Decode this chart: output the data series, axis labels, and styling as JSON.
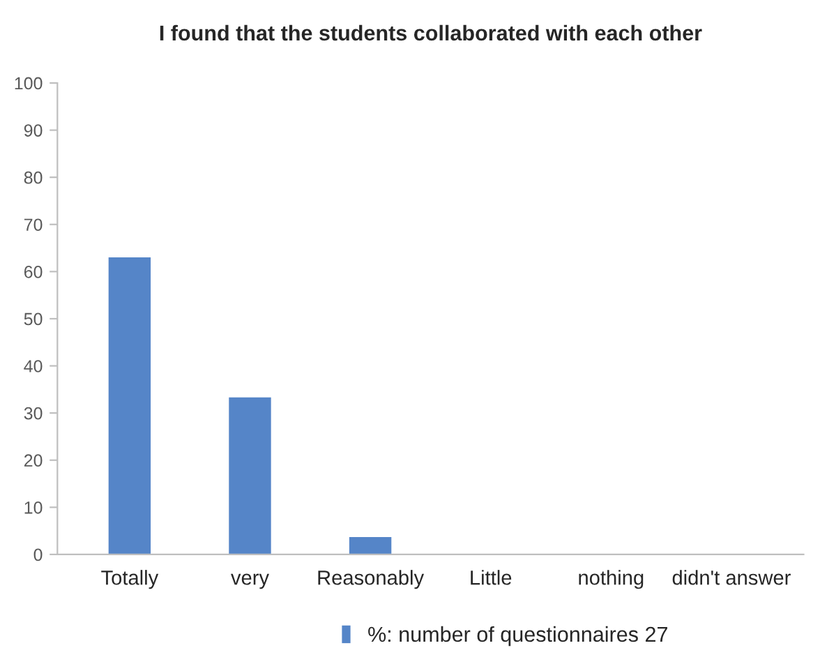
{
  "chart_data": {
    "type": "bar",
    "title": "I found that the students collaborated with each other",
    "categories": [
      "Totally",
      "very",
      "Reasonably",
      "Little",
      "nothing",
      "didn't answer"
    ],
    "series": [
      {
        "name": "%: number of questionnaires 27",
        "color": "#5585c8",
        "values": [
          63,
          33.3,
          3.7,
          0,
          0,
          0
        ]
      }
    ],
    "ylim": [
      0,
      100
    ],
    "yticks": [
      0,
      10,
      20,
      30,
      40,
      50,
      60,
      70,
      80,
      90,
      100
    ],
    "grid": false,
    "legend": "bottom"
  }
}
